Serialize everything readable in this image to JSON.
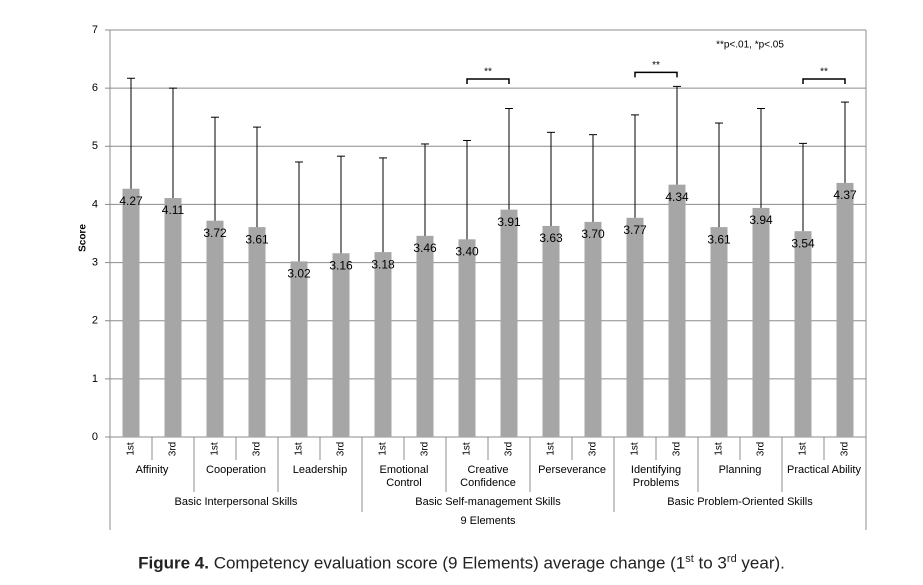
{
  "chart_data": {
    "type": "bar",
    "y_label": "Score",
    "categories": [
      "1st",
      "3rd",
      "1st",
      "3rd",
      "1st",
      "3rd",
      "1st",
      "3rd",
      "1st",
      "3rd",
      "1st",
      "3rd",
      "1st",
      "3rd",
      "1st",
      "3rd",
      "1st",
      "3rd"
    ],
    "groups": [
      "Affinity",
      "Cooperation",
      "Leadership",
      "Emotional Control",
      "Creative Confidence",
      "Perseverance",
      "Identifying Problems",
      "Planning",
      "Practical Ability"
    ],
    "super_groups": [
      "Basic Interpersonal Skills",
      "Basic Self-management Skills",
      "Basic Problem-Oriented Skills"
    ],
    "x_label": "9 Elements",
    "values": [
      4.27,
      4.11,
      3.72,
      3.61,
      3.02,
      3.16,
      3.18,
      3.46,
      3.4,
      3.91,
      3.63,
      3.7,
      3.77,
      4.34,
      3.61,
      3.94,
      3.54,
      4.37
    ],
    "value_labels": [
      "4.27",
      "4.11",
      "3.72",
      "3.61",
      "3.02",
      "3.16",
      "3.18",
      "3.46",
      "3.40",
      "3.91",
      "3.63",
      "3.70",
      "3.77",
      "4.34",
      "3.61",
      "3.94",
      "3.54",
      "4.37"
    ],
    "errors": [
      1.9,
      1.89,
      1.78,
      1.72,
      1.71,
      1.67,
      1.62,
      1.58,
      1.7,
      1.74,
      1.61,
      1.5,
      1.77,
      1.69,
      1.79,
      1.71,
      1.51,
      1.39
    ],
    "color": "#a6a6a6",
    "ylim": [
      0,
      7
    ],
    "yticks": [
      0,
      1,
      2,
      3,
      4,
      5,
      6,
      7
    ],
    "grid": true,
    "significance": [
      {
        "group": "Creative Confidence",
        "label": "**"
      },
      {
        "group": "Identifying Problems",
        "label": "**"
      },
      {
        "group": "Practical Ability",
        "label": "**"
      }
    ],
    "note": "**p<.01, *p<.05"
  },
  "caption": {
    "label": "Figure 4.",
    "text": "Competency evaluation score (9 Elements) average change (1",
    "sup1": "st",
    "mid": " to 3",
    "sup2": "rd",
    "end": " year)."
  }
}
